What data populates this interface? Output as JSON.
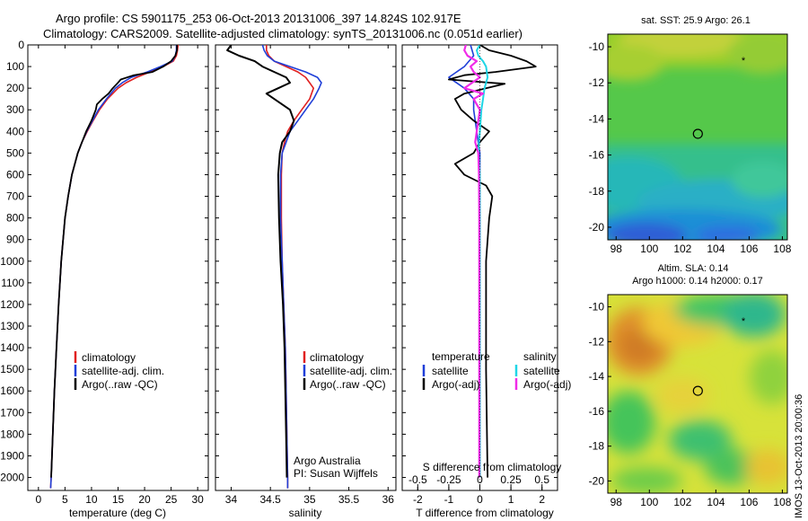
{
  "header": {
    "line1": "Argo profile: CS 5901175_253 06-Oct-2013 20131006_397 14.824S 102.917E",
    "line2": "Climatology: CARS2009. Satellite-adjusted climatology: synTS_20131006.nc (0.051d earlier)"
  },
  "colors": {
    "climatology": "#e02020",
    "satellite": "#1f3fd8",
    "argo": "#000000",
    "sal_satellite": "#1fd6e6",
    "sal_argo": "#f02ce8"
  },
  "depth_axis": {
    "ticks": [
      0,
      100,
      200,
      300,
      400,
      500,
      600,
      700,
      800,
      900,
      1000,
      1100,
      1200,
      1300,
      1400,
      1500,
      1600,
      1700,
      1800,
      1900,
      2000
    ],
    "tick_labels": [
      "0",
      "100",
      "200",
      "300",
      "400",
      "500",
      "600",
      "700",
      "800",
      "900",
      "1000",
      "1100",
      "1200",
      "1300",
      "1400",
      "1500",
      "1600",
      "1700",
      "1800",
      "1900",
      "2000"
    ],
    "range": [
      0,
      2060
    ]
  },
  "panels": {
    "temperature": {
      "xlabel": "temperature (deg C)",
      "xticks": [
        0,
        5,
        10,
        15,
        20,
        25,
        30
      ],
      "xtick_labels": [
        "0",
        "5",
        "10",
        "15",
        "20",
        "25",
        "30"
      ],
      "xlim": [
        -2,
        32
      ],
      "legend": [
        "climatology",
        "satellite-adj. clim.",
        "Argo(..raw -QC)"
      ]
    },
    "salinity": {
      "xlabel": "salinity",
      "xticks": [
        34,
        34.5,
        35,
        35.5,
        36
      ],
      "xtick_labels": [
        "34",
        "34.5",
        "35",
        "35.5",
        "36"
      ],
      "xlim": [
        33.8,
        36.1
      ],
      "legend": [
        "climatology",
        "satellite-adj. clim.",
        "Argo(..raw -QC)"
      ],
      "credit1": "Argo Australia",
      "credit2": "PI: Susan Wijffels"
    },
    "difference": {
      "xlabel": "T difference from climatology",
      "xticks": [
        -2,
        -1,
        0,
        1,
        2
      ],
      "xtick_labels": [
        "-2",
        "-1",
        "0",
        "1",
        "2"
      ],
      "xlim": [
        -2.5,
        2.5
      ],
      "top_axis_title": "S difference from climatology",
      "top_ticks": [
        -0.5,
        -0.25,
        0,
        0.25,
        0.5
      ],
      "top_tick_labels": [
        "-0.5",
        "-0.25",
        "0",
        "0.25",
        "0.5"
      ],
      "legend_temp_title": "temperature",
      "legend_sal_title": "salinity",
      "legend_temp": [
        "satellite",
        "Argo(-adj)"
      ],
      "legend_sal": [
        "satellite",
        "Argo(-adj)"
      ]
    }
  },
  "maps": {
    "sst": {
      "title": "sat. SST: 25.9 Argo: 26.1",
      "xticks": [
        98,
        100,
        102,
        104,
        106,
        108
      ],
      "xtick_labels": [
        "98",
        "100",
        "102",
        "104",
        "106",
        "108"
      ],
      "yticks": [
        -10,
        -12,
        -14,
        -16,
        -18,
        -20
      ],
      "ytick_labels": [
        "-10",
        "-12",
        "-14",
        "-16",
        "-18",
        "-20"
      ]
    },
    "sla": {
      "title1": "Altim. SLA: 0.14",
      "title2": "Argo h1000: 0.14 h2000: 0.17",
      "xticks": [
        98,
        100,
        102,
        104,
        106,
        108
      ],
      "xtick_labels": [
        "98",
        "100",
        "102",
        "104",
        "106",
        "108"
      ],
      "yticks": [
        -10,
        -12,
        -14,
        -16,
        -18,
        -20
      ],
      "ytick_labels": [
        "-10",
        "-12",
        "-14",
        "-16",
        "-18",
        "-20"
      ]
    },
    "float_position": {
      "lon": 102.917,
      "lat": -14.824
    }
  },
  "side_label": "IMOS 13-Oct-2013 20:00:36",
  "chart_data": [
    {
      "type": "line",
      "name": "temperature",
      "xlabel": "temperature (deg C)",
      "ylabel": "",
      "xlim": [
        -2,
        32
      ],
      "ylim": [
        2060,
        0
      ],
      "series": [
        {
          "name": "climatology",
          "depth": [
            0,
            25,
            50,
            75,
            100,
            125,
            150,
            175,
            200,
            250,
            300,
            350,
            400,
            450,
            500,
            600,
            700,
            800,
            1000,
            1200,
            1400,
            1600,
            1800,
            2000,
            2050
          ],
          "values": [
            26.3,
            26.2,
            26.0,
            25.4,
            23.5,
            21.0,
            18.5,
            16.5,
            15.0,
            13.0,
            11.5,
            10.3,
            9.2,
            8.2,
            7.4,
            6.3,
            5.6,
            5.0,
            4.3,
            3.8,
            3.4,
            3.0,
            2.7,
            2.4,
            2.3
          ]
        },
        {
          "name": "satellite-adj. clim.",
          "depth": [
            0,
            25,
            50,
            75,
            100,
            125,
            150,
            175,
            200,
            250,
            300,
            350,
            400,
            450,
            500,
            600,
            700,
            800,
            1000,
            1200,
            1400,
            1600,
            1800,
            2000,
            2050
          ],
          "values": [
            26.0,
            26.0,
            25.8,
            25.2,
            23.0,
            20.5,
            17.5,
            15.8,
            14.5,
            12.8,
            11.3,
            10.2,
            9.1,
            8.2,
            7.4,
            6.3,
            5.6,
            5.0,
            4.3,
            3.8,
            3.4,
            3.0,
            2.7,
            2.4,
            2.3
          ]
        },
        {
          "name": "Argo(..raw -QC)",
          "depth": [
            0,
            25,
            50,
            75,
            100,
            125,
            140,
            160,
            180,
            200,
            225,
            250,
            275,
            300,
            350,
            400,
            450,
            500,
            600,
            700,
            800,
            1000,
            1200,
            1400,
            1600,
            1800,
            2000
          ],
          "values": [
            26.1,
            26.1,
            25.8,
            25.0,
            23.5,
            21.5,
            18.0,
            15.5,
            14.8,
            14.0,
            13.2,
            12.0,
            11.0,
            10.8,
            10.0,
            9.0,
            8.2,
            7.4,
            6.3,
            5.6,
            5.0,
            4.3,
            3.8,
            3.4,
            3.0,
            2.7,
            2.4
          ]
        }
      ]
    },
    {
      "type": "line",
      "name": "salinity",
      "xlabel": "salinity",
      "ylabel": "",
      "xlim": [
        33.8,
        36.1
      ],
      "ylim": [
        2060,
        0
      ],
      "series": [
        {
          "name": "climatology",
          "depth": [
            0,
            25,
            50,
            75,
            100,
            125,
            150,
            175,
            200,
            250,
            300,
            350,
            400,
            450,
            500,
            600,
            800,
            1000,
            1200,
            1400,
            1600,
            1800,
            2000,
            2050
          ],
          "values": [
            34.45,
            34.45,
            34.48,
            34.55,
            34.7,
            34.85,
            34.95,
            35.0,
            35.05,
            35.0,
            34.9,
            34.8,
            34.72,
            34.68,
            34.65,
            34.64,
            34.64,
            34.65,
            34.67,
            34.69,
            34.7,
            34.71,
            34.72,
            34.72
          ]
        },
        {
          "name": "satellite-adj. clim.",
          "depth": [
            0,
            25,
            50,
            75,
            100,
            125,
            150,
            175,
            200,
            250,
            300,
            350,
            400,
            450,
            500,
            600,
            800,
            1000,
            1200,
            1400,
            1600,
            1800,
            2000,
            2050
          ],
          "values": [
            34.4,
            34.42,
            34.46,
            34.55,
            34.75,
            34.95,
            35.1,
            35.15,
            35.12,
            35.05,
            34.95,
            34.85,
            34.75,
            34.7,
            34.65,
            34.63,
            34.63,
            34.65,
            34.67,
            34.69,
            34.7,
            34.71,
            34.72,
            34.72
          ]
        },
        {
          "name": "Argo(..raw -QC)",
          "depth": [
            0,
            25,
            50,
            75,
            100,
            125,
            150,
            175,
            200,
            225,
            250,
            300,
            350,
            400,
            450,
            500,
            600,
            800,
            1000,
            1200,
            1400,
            1600,
            1800,
            2000
          ],
          "values": [
            34.0,
            33.95,
            34.1,
            34.3,
            34.4,
            34.55,
            34.7,
            34.75,
            34.6,
            34.45,
            34.55,
            34.75,
            34.8,
            34.75,
            34.65,
            34.62,
            34.6,
            34.61,
            34.63,
            34.66,
            34.68,
            34.69,
            34.7,
            34.71
          ]
        }
      ]
    },
    {
      "type": "line",
      "name": "difference",
      "xlabel": "T difference from climatology",
      "ylabel": "",
      "xlim": [
        -2.5,
        2.5
      ],
      "ylim": [
        2060,
        0
      ],
      "series": [
        {
          "name": "temperature satellite",
          "depth": [
            0,
            50,
            100,
            150,
            200,
            250,
            300,
            400,
            500,
            600,
            800,
            1000,
            1500,
            2000
          ],
          "values": [
            -0.3,
            -0.2,
            -0.5,
            -1.0,
            -0.5,
            -0.2,
            -0.2,
            -0.1,
            0.0,
            0.0,
            0.0,
            0.0,
            0.0,
            0.0
          ]
        },
        {
          "name": "temperature Argo(-adj)",
          "depth": [
            0,
            25,
            50,
            75,
            100,
            125,
            140,
            160,
            180,
            200,
            225,
            250,
            300,
            350,
            400,
            450,
            500,
            550,
            600,
            650,
            700,
            800,
            1000,
            1200,
            1500,
            2000
          ],
          "values": [
            0.0,
            0.3,
            1.0,
            1.5,
            1.8,
            0.5,
            -0.5,
            -1.0,
            0.8,
            0.2,
            -0.5,
            -0.8,
            -0.6,
            -0.2,
            0.3,
            0.0,
            -0.2,
            -0.8,
            -0.5,
            0.2,
            0.4,
            0.3,
            0.2,
            0.2,
            0.2,
            0.25
          ]
        },
        {
          "name": "salinity satellite",
          "depth": [
            0,
            25,
            50,
            75,
            100,
            150,
            200,
            250,
            300,
            400,
            500,
            600,
            700,
            800,
            1000,
            1500,
            2000
          ],
          "values": [
            0.0,
            -0.1,
            -0.05,
            0.1,
            0.2,
            0.25,
            0.15,
            0.1,
            0.05,
            0.0,
            -0.05,
            0.0,
            0.0,
            0.0,
            0.0,
            0.0,
            0.0
          ]
        },
        {
          "name": "salinity Argo(-adj)",
          "depth": [
            0,
            25,
            50,
            75,
            100,
            125,
            150,
            175,
            200,
            225,
            250,
            275,
            300,
            350,
            400,
            450,
            500,
            600,
            800,
            1000,
            1500,
            2000
          ],
          "values": [
            -0.45,
            -0.5,
            -0.4,
            -0.1,
            -0.3,
            -0.2,
            0.0,
            -0.25,
            -0.5,
            0.1,
            -0.2,
            -0.1,
            0.0,
            -0.05,
            -0.1,
            -0.15,
            -0.05,
            -0.03,
            -0.02,
            -0.02,
            -0.02,
            -0.02
          ]
        }
      ]
    }
  ]
}
